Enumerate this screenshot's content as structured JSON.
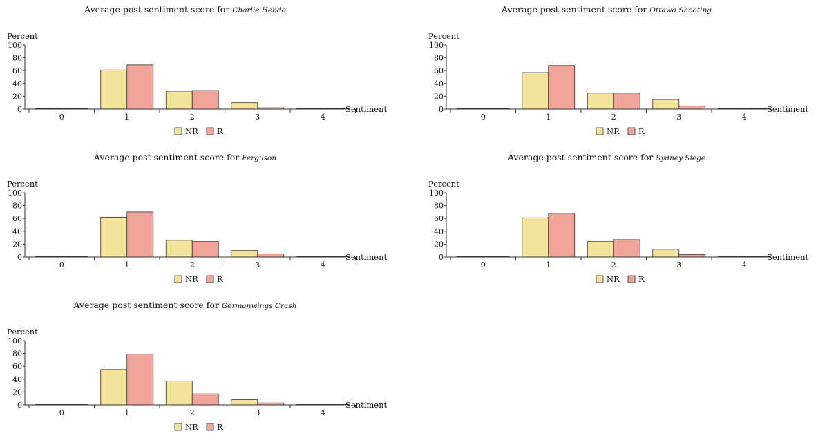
{
  "chart_data": [
    {
      "type": "bar",
      "title": "Average post sentiment score for",
      "title_event": "Charlie Hebdo",
      "xlabel": "Sentiment",
      "ylabel": "Percent",
      "ylim": [
        0,
        100
      ],
      "yticks": [
        0,
        20,
        40,
        60,
        80,
        100
      ],
      "categories": [
        "0",
        "1",
        "2",
        "3",
        "4"
      ],
      "series": [
        {
          "name": "NR",
          "color": "#f4e39a",
          "values": [
            0.3,
            61,
            28,
            10,
            0.3
          ]
        },
        {
          "name": "R",
          "color": "#f0a49a",
          "values": [
            0.2,
            69,
            29,
            2,
            0.1
          ]
        }
      ],
      "legend": "bottom-center",
      "grid": false
    },
    {
      "type": "bar",
      "title": "Average post sentiment score for",
      "title_event": "Ottawa Shooting",
      "xlabel": "Sentiment",
      "ylabel": "Percent",
      "ylim": [
        0,
        100
      ],
      "yticks": [
        0,
        20,
        40,
        60,
        80,
        100
      ],
      "categories": [
        "0",
        "1",
        "2",
        "3",
        "4"
      ],
      "series": [
        {
          "name": "NR",
          "color": "#f4e39a",
          "values": [
            0.5,
            57,
            25,
            15,
            0.4
          ]
        },
        {
          "name": "R",
          "color": "#f0a49a",
          "values": [
            0.3,
            68,
            25,
            5,
            0.2
          ]
        }
      ],
      "legend": "bottom-center",
      "grid": false
    },
    {
      "type": "bar",
      "title": "Average post sentiment score for",
      "title_event": "Ferguson",
      "xlabel": "Sentiment",
      "ylabel": "Percent",
      "ylim": [
        0,
        100
      ],
      "yticks": [
        0,
        20,
        40,
        60,
        80,
        100
      ],
      "categories": [
        "0",
        "1",
        "2",
        "3",
        "4"
      ],
      "series": [
        {
          "name": "NR",
          "color": "#f4e39a",
          "values": [
            1,
            62,
            26,
            10,
            0.3
          ]
        },
        {
          "name": "R",
          "color": "#f0a49a",
          "values": [
            0.3,
            70,
            24,
            5,
            0.2
          ]
        }
      ],
      "legend": "bottom-center",
      "grid": false
    },
    {
      "type": "bar",
      "title": "Average post sentiment score for",
      "title_event": "Sydney Siege",
      "xlabel": "Sentiment",
      "ylabel": "Percent",
      "ylim": [
        0,
        100
      ],
      "yticks": [
        0,
        20,
        40,
        60,
        80,
        100
      ],
      "categories": [
        "0",
        "1",
        "2",
        "3",
        "4"
      ],
      "series": [
        {
          "name": "NR",
          "color": "#f4e39a",
          "values": [
            0.5,
            61,
            24,
            12,
            1
          ]
        },
        {
          "name": "R",
          "color": "#f0a49a",
          "values": [
            0.2,
            68,
            27,
            4,
            0.2
          ]
        }
      ],
      "legend": "bottom-center",
      "grid": false
    },
    {
      "type": "bar",
      "title": "Average post sentiment score for",
      "title_event": "Germanwings Crash",
      "xlabel": "Sentiment",
      "ylabel": "Percent",
      "ylim": [
        0,
        100
      ],
      "yticks": [
        0,
        20,
        40,
        60,
        80,
        100
      ],
      "categories": [
        "0",
        "1",
        "2",
        "3",
        "4"
      ],
      "series": [
        {
          "name": "NR",
          "color": "#f4e39a",
          "values": [
            0.2,
            55,
            37,
            8,
            0.2
          ]
        },
        {
          "name": "R",
          "color": "#f0a49a",
          "values": [
            0.1,
            79,
            17,
            3,
            0.1
          ]
        }
      ],
      "legend": "bottom-center",
      "grid": false
    }
  ]
}
